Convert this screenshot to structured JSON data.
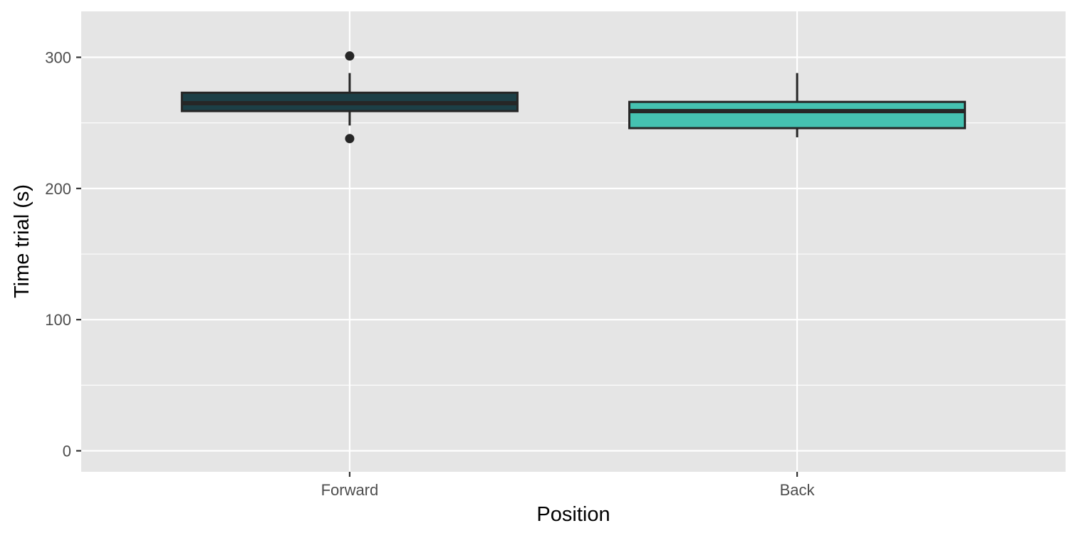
{
  "chart_data": {
    "type": "boxplot",
    "title": "",
    "xlabel": "Position",
    "ylabel": "Time trial (s)",
    "ylim": [
      -16,
      335
    ],
    "yticks": [
      0,
      100,
      200,
      300
    ],
    "ytick_labels": [
      "0",
      "100",
      "200",
      "300"
    ],
    "grid": true,
    "legend": "none",
    "categories": [
      "Forward",
      "Back"
    ],
    "boxes": [
      {
        "category": "Forward",
        "q1": 259,
        "median": 265,
        "q3": 273,
        "whisker_low": 248,
        "whisker_high": 288,
        "outliers": [
          301,
          238
        ],
        "fill": "#1c3f46"
      },
      {
        "category": "Back",
        "q1": 246,
        "median": 259,
        "q3": 266,
        "whisker_low": 239,
        "whisker_high": 288,
        "outliers": [],
        "fill": "#45c2b1"
      }
    ],
    "colors": {
      "panel_background": "#e5e5e5",
      "grid": "#ffffff",
      "box_outline": "#262626",
      "tick_text": "#4d4d4d",
      "tick_mark": "#333333"
    }
  }
}
